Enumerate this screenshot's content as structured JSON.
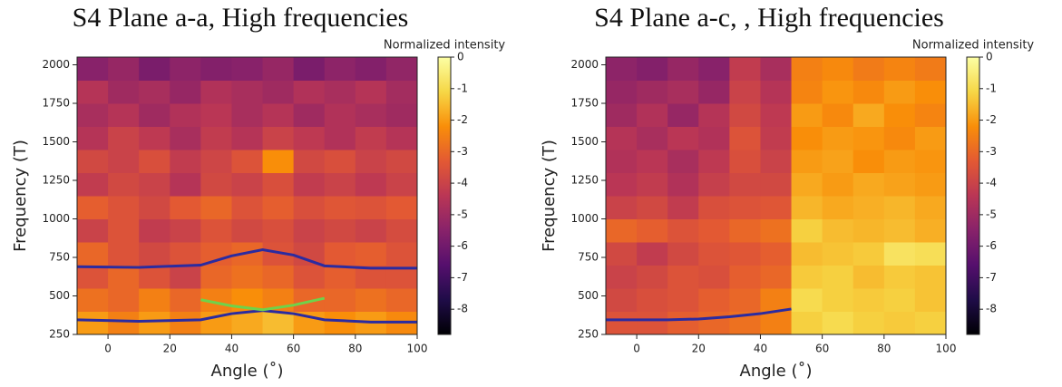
{
  "chart_data": [
    {
      "type": "heatmap",
      "title": "S4 Plane a-a, High frequencies",
      "xlabel": "Angle (˚)",
      "ylabel": "Frequency (T)",
      "colorbar_label": "Normalized intensity",
      "colormap": "inferno",
      "xlim": [
        -10,
        100
      ],
      "ylim": [
        250,
        2050
      ],
      "xticks": [
        0,
        20,
        40,
        60,
        80,
        100
      ],
      "yticks": [
        250,
        500,
        750,
        1000,
        1250,
        1500,
        1750,
        2000
      ],
      "clim": [
        -8.8,
        0
      ],
      "cticks": [
        0,
        -1,
        -2,
        -3,
        -4,
        -5,
        -6,
        -7,
        -8
      ],
      "x_bins": [
        -10,
        0,
        10,
        20,
        30,
        40,
        50,
        60,
        70,
        80,
        90,
        100
      ],
      "y_bins": [
        250,
        400,
        550,
        700,
        850,
        1000,
        1150,
        1300,
        1450,
        1600,
        1750,
        1900,
        2050
      ],
      "z": [
        [
          -2,
          -2.5,
          -2,
          -2.5,
          -2,
          -1.8,
          -1.5,
          -2,
          -2.2,
          -2,
          -2.3
        ],
        [
          -2.8,
          -3,
          -2.5,
          -3,
          -2.5,
          -2.2,
          -2.5,
          -3,
          -3,
          -2.8,
          -3
        ],
        [
          -3.5,
          -3,
          -3.5,
          -4,
          -3,
          -2.8,
          -3,
          -3.5,
          -3.2,
          -3.5,
          -3.5
        ],
        [
          -3,
          -3.5,
          -3.8,
          -3.5,
          -3.2,
          -3,
          -3.5,
          -3.8,
          -3.3,
          -3.2,
          -3.5
        ],
        [
          -4,
          -3.5,
          -4.2,
          -4,
          -3.5,
          -3.8,
          -3.6,
          -4,
          -3.8,
          -4,
          -3.7
        ],
        [
          -3.2,
          -3.5,
          -3.8,
          -3.3,
          -3,
          -3.5,
          -3.2,
          -3.6,
          -3.4,
          -3.5,
          -3.3
        ],
        [
          -4.2,
          -3.8,
          -4,
          -4.5,
          -3.8,
          -4,
          -3.6,
          -4.2,
          -4,
          -4.3,
          -4
        ],
        [
          -3.8,
          -4,
          -3.6,
          -4.2,
          -3.9,
          -3.5,
          -2.2,
          -3.8,
          -3.6,
          -4,
          -3.8
        ],
        [
          -4.5,
          -4,
          -4.3,
          -4.8,
          -4.2,
          -4.5,
          -4,
          -4.3,
          -4.6,
          -4.2,
          -4.5
        ],
        [
          -4.8,
          -4.5,
          -5,
          -4.6,
          -4.4,
          -4.8,
          -4.5,
          -5,
          -4.6,
          -4.8,
          -5
        ],
        [
          -4.5,
          -5,
          -4.8,
          -5.2,
          -4.6,
          -4.8,
          -5,
          -4.6,
          -4.8,
          -4.5,
          -4.9
        ],
        [
          -5.5,
          -5.2,
          -5.8,
          -5.4,
          -5.6,
          -5.5,
          -5.2,
          -5.8,
          -5.4,
          -5.6,
          -5.3
        ]
      ],
      "curves": [
        {
          "color": "#2b2ba0",
          "x": [
            -10,
            10,
            30,
            40,
            50,
            60,
            70,
            85,
            100
          ],
          "y": [
            690,
            685,
            700,
            760,
            800,
            765,
            695,
            680,
            680
          ]
        },
        {
          "color": "#2b2ba0",
          "x": [
            -10,
            10,
            30,
            40,
            50,
            60,
            70,
            85,
            100
          ],
          "y": [
            345,
            335,
            345,
            385,
            405,
            385,
            345,
            330,
            330
          ]
        },
        {
          "color": "#6fd24a",
          "x": [
            30,
            40,
            50,
            60,
            70
          ],
          "y": [
            475,
            435,
            410,
            440,
            485
          ]
        }
      ]
    },
    {
      "type": "heatmap",
      "title": "S4 Plane a-c, , High frequencies",
      "xlabel": "Angle (˚)",
      "ylabel": "Frequency (T)",
      "colorbar_label": "Normalized intensity",
      "colormap": "inferno",
      "xlim": [
        -10,
        100
      ],
      "ylim": [
        250,
        2050
      ],
      "xticks": [
        0,
        20,
        40,
        60,
        80,
        100
      ],
      "yticks": [
        250,
        500,
        750,
        1000,
        1250,
        1500,
        1750,
        2000
      ],
      "clim": [
        -8.8,
        0
      ],
      "cticks": [
        0,
        -1,
        -2,
        -3,
        -4,
        -5,
        -6,
        -7,
        -8
      ],
      "x_bins": [
        -10,
        0,
        10,
        20,
        30,
        40,
        50,
        60,
        70,
        80,
        90,
        100
      ],
      "y_bins": [
        250,
        400,
        550,
        700,
        850,
        1000,
        1150,
        1300,
        1450,
        1600,
        1750,
        1900,
        2050
      ],
      "z": [
        [
          -3.5,
          -3.5,
          -3.2,
          -3,
          -2.8,
          -2.5,
          -1.2,
          -1,
          -1.2,
          -1.3,
          -1.2
        ],
        [
          -3.8,
          -3.6,
          -3.5,
          -3.2,
          -3,
          -2.5,
          -1,
          -1.2,
          -1.3,
          -1.2,
          -1.4
        ],
        [
          -4,
          -3.8,
          -3.5,
          -3.6,
          -3.2,
          -3,
          -1.3,
          -1.2,
          -1.5,
          -1.3,
          -1.4
        ],
        [
          -3.8,
          -4.2,
          -3.8,
          -3.5,
          -3.4,
          -3.2,
          -1.5,
          -1.4,
          -1.3,
          -0.8,
          -0.9
        ],
        [
          -3,
          -3.2,
          -3.5,
          -3.3,
          -3,
          -2.8,
          -1.2,
          -1.5,
          -1.6,
          -1.5,
          -1.7
        ],
        [
          -4,
          -3.8,
          -4.2,
          -3.6,
          -3.5,
          -3.4,
          -1.6,
          -1.8,
          -1.7,
          -1.6,
          -1.8
        ],
        [
          -4.4,
          -4.2,
          -4.6,
          -4.1,
          -3.8,
          -3.8,
          -1.8,
          -2,
          -1.8,
          -1.9,
          -2
        ],
        [
          -4.6,
          -4.4,
          -4.8,
          -4.3,
          -3.6,
          -4,
          -2,
          -1.9,
          -2.2,
          -2,
          -2.1
        ],
        [
          -4.5,
          -4.8,
          -4.4,
          -4.6,
          -3.5,
          -4.2,
          -2.2,
          -2,
          -2.1,
          -2.3,
          -2
        ],
        [
          -5,
          -4.6,
          -5.2,
          -4.5,
          -3.8,
          -4.3,
          -2,
          -2.3,
          -1.8,
          -2.2,
          -2.4
        ],
        [
          -5.2,
          -5,
          -4.8,
          -5.2,
          -4,
          -4.5,
          -2.4,
          -2.1,
          -2.3,
          -2,
          -2.2
        ],
        [
          -5.4,
          -5.6,
          -5.2,
          -5.5,
          -4.2,
          -4.8,
          -2.5,
          -2.3,
          -2.6,
          -2.4,
          -2.6
        ]
      ],
      "curves": [
        {
          "color": "#2b2ba0",
          "x": [
            -10,
            10,
            20,
            30,
            40,
            50
          ],
          "y": [
            345,
            345,
            350,
            365,
            385,
            415
          ]
        }
      ]
    }
  ]
}
